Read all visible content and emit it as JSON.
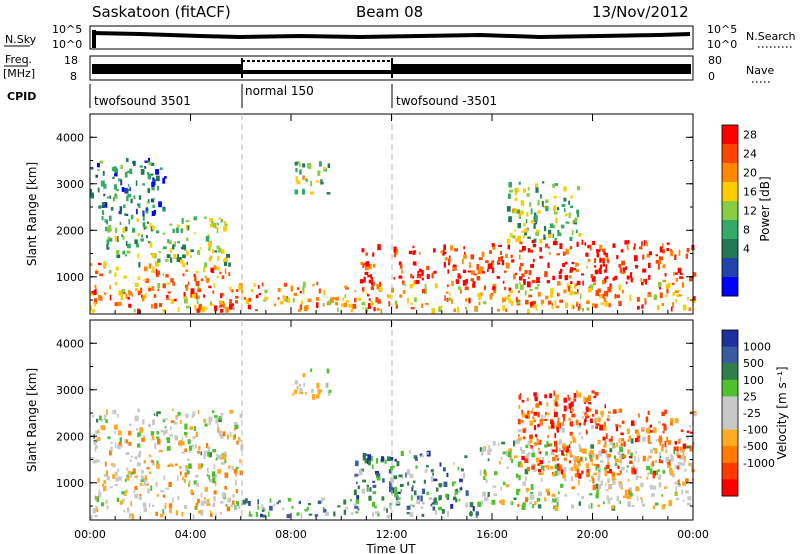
{
  "header": {
    "station": "Saskatoon (fitACF)",
    "beam": "Beam 08",
    "date": "13/Nov/2012"
  },
  "noise_panel": {
    "left_label": "N.Sky",
    "left_ticks": [
      "10^5",
      "10^0"
    ],
    "right_label": "N.Search",
    "right_ticks": [
      "10^5",
      "10^0"
    ]
  },
  "freq_panel": {
    "left_label_line1": "Freq.",
    "left_label_line2": "[MHz]",
    "left_ticks": [
      "18",
      "8"
    ],
    "right_label": "Nave",
    "right_ticks": [
      "80",
      "0"
    ]
  },
  "cpid": {
    "label": "CPID",
    "segments": [
      {
        "name": "twofsound 3501",
        "start_hour": 0,
        "end_hour": 6
      },
      {
        "name": "normal 150",
        "start_hour": 6,
        "end_hour": 12
      },
      {
        "name": "twofsound -3501",
        "start_hour": 12,
        "end_hour": 24
      }
    ]
  },
  "power_colorbar": {
    "label": "Power [dB]",
    "ticks": [
      "28",
      "24",
      "20",
      "16",
      "12",
      "8",
      "4"
    ],
    "colors": [
      "#ff0000",
      "#ff4400",
      "#ff8800",
      "#ffcc00",
      "#88cc44",
      "#33aa66",
      "#227755",
      "#2244aa",
      "#0000ff"
    ]
  },
  "velocity_colorbar": {
    "label": "Velocity [m s⁻¹]",
    "ticks": [
      "1000",
      "500",
      "100",
      "25",
      "-25",
      "-100",
      "-500",
      "-1000"
    ],
    "colors": [
      "#1e2f9e",
      "#3c5aa0",
      "#2f7f4a",
      "#4fc12f",
      "#c8c8c8",
      "#c8c8c8",
      "#ffaa22",
      "#ff7a00",
      "#ff3a00",
      "#ff0000"
    ]
  },
  "chart_data": {
    "type": "heatmap",
    "x_axis": {
      "label": "Time UT",
      "range_hours": [
        0,
        24
      ],
      "tick_labels": [
        "00:00",
        "04:00",
        "08:00",
        "12:00",
        "16:00",
        "20:00",
        "00:00"
      ]
    },
    "y_axis": {
      "label": "Slant Range [km]",
      "range_km": [
        200,
        4500
      ],
      "tick_labels": [
        "1000",
        "2000",
        "3000",
        "4000"
      ]
    },
    "power_regions": [
      {
        "t0": 0.0,
        "t1": 6.0,
        "r0": 300,
        "r1": 1300,
        "level": 0.75
      },
      {
        "t0": 0.5,
        "t1": 5.5,
        "r0": 1300,
        "r1": 2300,
        "level": 0.45
      },
      {
        "t0": 0.0,
        "t1": 3.0,
        "r0": 2300,
        "r1": 3600,
        "level": 0.25
      },
      {
        "t0": 8.0,
        "t1": 9.5,
        "r0": 2800,
        "r1": 3500,
        "level": 0.5
      },
      {
        "t0": 6.0,
        "t1": 12.0,
        "r0": 300,
        "r1": 900,
        "level": 0.7
      },
      {
        "t0": 10.7,
        "t1": 11.5,
        "r0": 700,
        "r1": 1700,
        "level": 0.95
      },
      {
        "t0": 12.0,
        "t1": 15.0,
        "r0": 900,
        "r1": 1700,
        "level": 0.95
      },
      {
        "t0": 12.0,
        "t1": 24.0,
        "r0": 300,
        "r1": 900,
        "level": 0.7
      },
      {
        "t0": 15.0,
        "t1": 24.0,
        "r0": 900,
        "r1": 1800,
        "level": 0.9
      },
      {
        "t0": 16.5,
        "t1": 19.5,
        "r0": 1800,
        "r1": 3100,
        "level": 0.45
      }
    ],
    "velocity_regions": [
      {
        "t0": 0.0,
        "t1": 6.0,
        "r0": 300,
        "r1": 1500,
        "level": 0.45
      },
      {
        "t0": 0.0,
        "t1": 6.0,
        "r0": 1500,
        "r1": 2600,
        "level": 0.5
      },
      {
        "t0": 8.0,
        "t1": 9.5,
        "r0": 2900,
        "r1": 3500,
        "level": 0.5
      },
      {
        "t0": 10.5,
        "t1": 15.0,
        "r0": 700,
        "r1": 1700,
        "level": 0.75
      },
      {
        "t0": 6.0,
        "t1": 12.0,
        "r0": 300,
        "r1": 700,
        "level": 0.7
      },
      {
        "t0": 12.0,
        "t1": 15.5,
        "r0": 300,
        "r1": 700,
        "level": 0.7
      },
      {
        "t0": 15.5,
        "t1": 24.0,
        "r0": 500,
        "r1": 2000,
        "level": 0.5
      },
      {
        "t0": 17.0,
        "t1": 24.0,
        "r0": 1200,
        "r1": 2600,
        "level": 0.25
      },
      {
        "t0": 17.0,
        "t1": 20.5,
        "r0": 2200,
        "r1": 3000,
        "level": 0.15
      }
    ]
  }
}
